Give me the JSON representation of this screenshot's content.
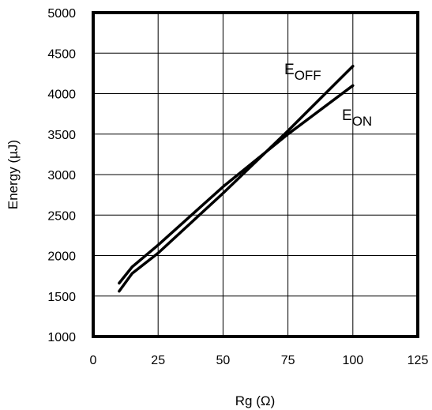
{
  "chart_data": {
    "type": "line",
    "title": "",
    "xlabel": "Rg (Ω)",
    "ylabel": "Energy (µJ)",
    "xlim": [
      0,
      125
    ],
    "ylim": [
      1000,
      5000
    ],
    "xticks": [
      "0",
      "25",
      "50",
      "75",
      "100",
      "125"
    ],
    "yticks": [
      "1000",
      "1500",
      "2000",
      "2500",
      "3000",
      "3500",
      "4000",
      "4500",
      "5000"
    ],
    "grid": true,
    "series": [
      {
        "name": "EOFF",
        "label_main": "E",
        "label_sub": "OFF",
        "x": [
          10,
          15,
          25,
          50,
          75,
          100
        ],
        "y": [
          1560,
          1780,
          2030,
          2770,
          3540,
          4340
        ]
      },
      {
        "name": "EON",
        "label_main": "E",
        "label_sub": "ON",
        "x": [
          10,
          15,
          25,
          50,
          75,
          100
        ],
        "y": [
          1660,
          1860,
          2130,
          2850,
          3500,
          4100
        ]
      }
    ]
  }
}
